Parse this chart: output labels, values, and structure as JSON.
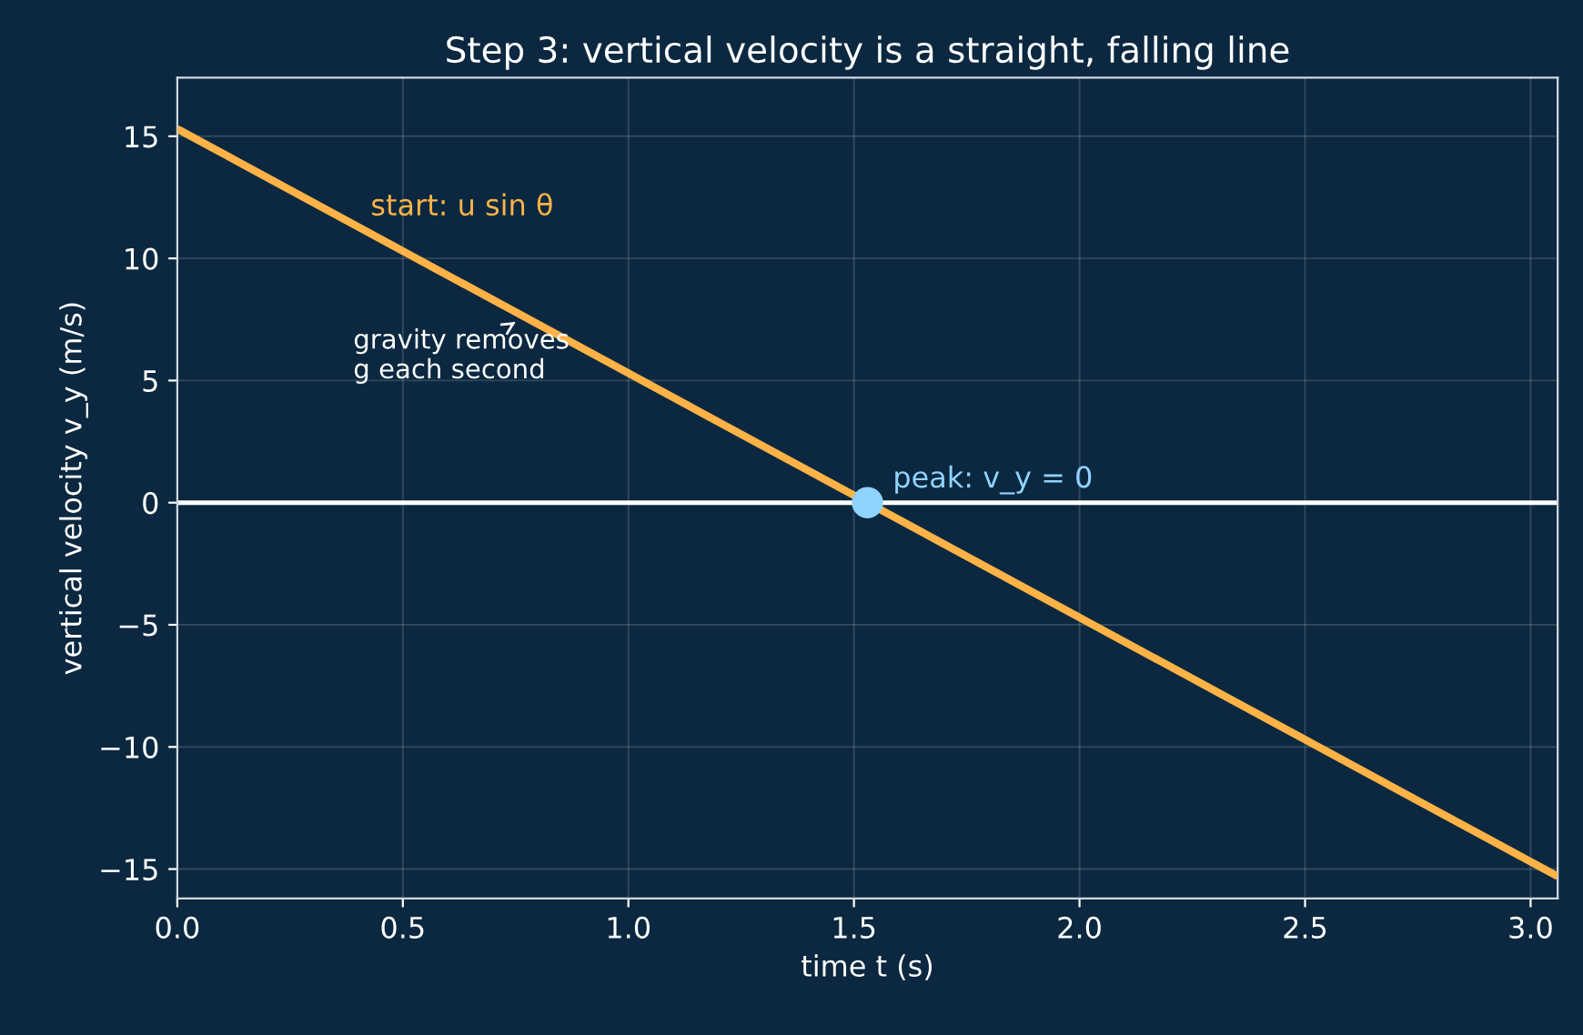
{
  "chart_data": {
    "type": "line",
    "title": "Step 3: vertical velocity is a straight, falling line",
    "xlabel": "time t (s)",
    "ylabel": "vertical velocity v_y (m/s)",
    "series": [
      {
        "type": "line",
        "color": "#ffb347",
        "x": [
          0,
          3.06
        ],
        "values": [
          15.3,
          -15.3
        ]
      },
      {
        "type": "scatter",
        "color": "#8fd3ff",
        "x": [
          1.53
        ],
        "values": [
          0
        ]
      }
    ],
    "xlim": [
      0,
      3.06
    ],
    "ylim": [
      -16.2,
      17.4
    ],
    "xticks": [
      {
        "value": 0,
        "label": "0.0"
      },
      0.5,
      {
        "value": 1,
        "label": "1.0"
      },
      1.5,
      {
        "value": 2,
        "label": "2.0"
      },
      2.5,
      {
        "value": 3,
        "label": "3.0"
      }
    ],
    "yticks": [
      -15,
      -10,
      -5,
      0,
      5,
      10,
      15
    ],
    "ref_lines": [
      {
        "axis": "y",
        "value": 0,
        "color": "#ffffff"
      }
    ],
    "annotations": [
      "start: u sin θ",
      {
        "text": "gravity removes\ng each second",
        "x": 0.75,
        "y": 7.8
      },
      {
        "text": "peak: v_y = 0",
        "x": 1.53,
        "y": 0
      }
    ],
    "grid": true
  }
}
